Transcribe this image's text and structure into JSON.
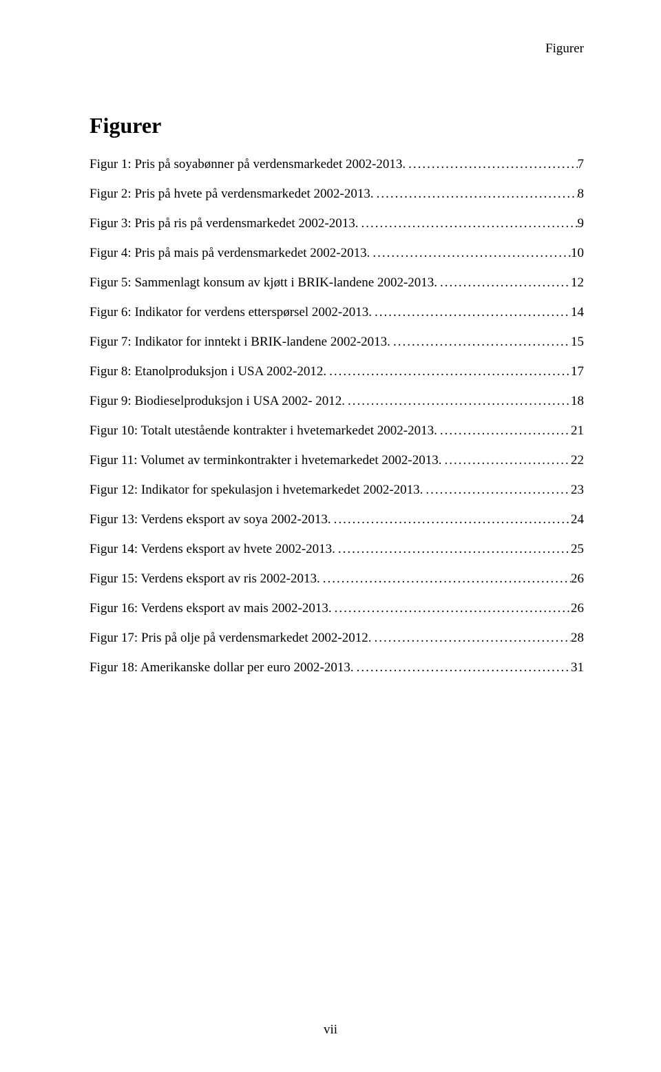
{
  "runningHeader": "Figurer",
  "sectionTitle": "Figurer",
  "pageNumber": "vii",
  "entries": [
    {
      "label": "Figur 1: Pris på soyabønner på verdensmarkedet 2002-2013.",
      "page": "7"
    },
    {
      "label": "Figur 2: Pris på hvete på verdensmarkedet 2002-2013.",
      "page": "8"
    },
    {
      "label": "Figur 3: Pris på ris på verdensmarkedet 2002-2013.",
      "page": "9"
    },
    {
      "label": "Figur 4: Pris på mais på verdensmarkedet 2002-2013.",
      "page": "10"
    },
    {
      "label": "Figur 5: Sammenlagt konsum av kjøtt i BRIK-landene 2002-2013.",
      "page": "12"
    },
    {
      "label": "Figur 6: Indikator for verdens etterspørsel 2002-2013.",
      "page": "14"
    },
    {
      "label": "Figur 7: Indikator for inntekt i BRIK-landene 2002-2013.",
      "page": "15"
    },
    {
      "label": "Figur 8: Etanolproduksjon i USA 2002-2012.",
      "page": "17"
    },
    {
      "label": "Figur 9: Biodieselproduksjon i USA 2002- 2012.",
      "page": "18"
    },
    {
      "label": "Figur 10: Totalt utestående kontrakter i hvetemarkedet 2002-2013.",
      "page": "21"
    },
    {
      "label": "Figur 11: Volumet av terminkontrakter i hvetemarkedet 2002-2013.",
      "page": "22"
    },
    {
      "label": "Figur 12: Indikator for spekulasjon i hvetemarkedet 2002-2013.",
      "page": "23"
    },
    {
      "label": "Figur 13: Verdens eksport av soya 2002-2013.",
      "page": "24"
    },
    {
      "label": "Figur 14: Verdens eksport av hvete 2002-2013.",
      "page": "25"
    },
    {
      "label": "Figur 15: Verdens eksport av ris 2002-2013.",
      "page": "26"
    },
    {
      "label": "Figur 16: Verdens eksport av mais 2002-2013.",
      "page": "26"
    },
    {
      "label": "Figur 17: Pris på olje på verdensmarkedet 2002-2012.",
      "page": "28"
    },
    {
      "label": "Figur 18: Amerikanske dollar per euro 2002-2013.",
      "page": "31"
    }
  ]
}
